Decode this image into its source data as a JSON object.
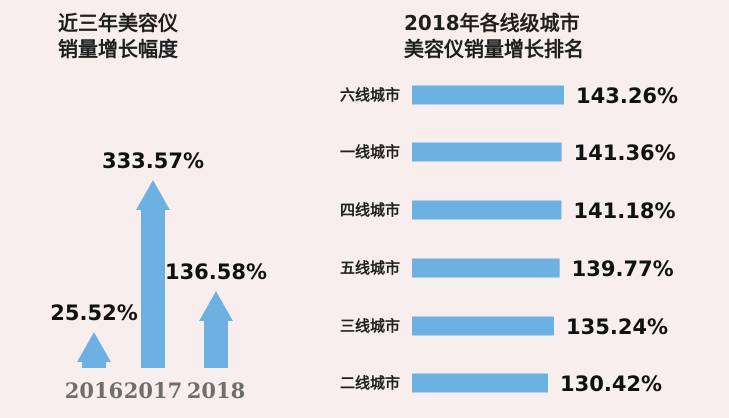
{
  "left_title": [
    "近三年美容仪",
    "销量增长幅度"
  ],
  "right_title": [
    "2018年各线级城市",
    "美容仪销量增长排名"
  ],
  "colors": {
    "bar": "#6cb1e1",
    "background": "#f8eeee"
  },
  "chart_data": [
    {
      "type": "bar",
      "categories": [
        "2016",
        "2017",
        "2018"
      ],
      "values": [
        25.52,
        333.57,
        136.58
      ],
      "labels": [
        "25.52%",
        "333.57%",
        "136.58%"
      ]
    },
    {
      "type": "bar",
      "orientation": "horizontal",
      "categories": [
        "六线城市",
        "一线城市",
        "四线城市",
        "五线城市",
        "三线城市",
        "二线城市"
      ],
      "values": [
        143.26,
        141.36,
        141.18,
        139.77,
        135.24,
        130.42
      ],
      "labels": [
        "143.26%",
        "141.36%",
        "141.18%",
        "139.77%",
        "135.24%",
        "130.42%"
      ]
    }
  ]
}
